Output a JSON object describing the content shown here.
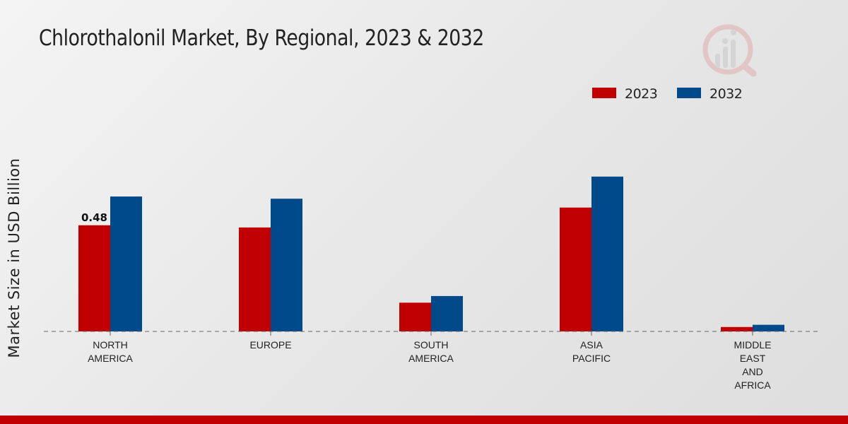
{
  "title": "Chlorothalonil Market, By Regional, 2023 & 2032",
  "colors": {
    "series_2023": "#c00000",
    "series_2032": "#004a8c",
    "accent_bar": "#c00000"
  },
  "chart_data": {
    "type": "bar",
    "title": "Chlorothalonil Market, By Regional, 2023 & 2032",
    "xlabel": "",
    "ylabel": "Market Size in USD Billion",
    "ylim": [
      0,
      0.8
    ],
    "grid": false,
    "legend_position": "top-right",
    "categories": [
      [
        "NORTH",
        "AMERICA"
      ],
      [
        "EUROPE"
      ],
      [
        "SOUTH",
        "AMERICA"
      ],
      [
        "ASIA",
        "PACIFIC"
      ],
      [
        "MIDDLE",
        "EAST",
        "AND",
        "AFRICA"
      ]
    ],
    "series": [
      {
        "name": "2023",
        "color": "#c00000",
        "values": [
          0.48,
          0.47,
          0.13,
          0.56,
          0.02
        ]
      },
      {
        "name": "2032",
        "color": "#004a8c",
        "values": [
          0.61,
          0.6,
          0.16,
          0.7,
          0.03
        ]
      }
    ],
    "data_labels": [
      {
        "series": 0,
        "index": 0,
        "text": "0.48"
      }
    ]
  }
}
